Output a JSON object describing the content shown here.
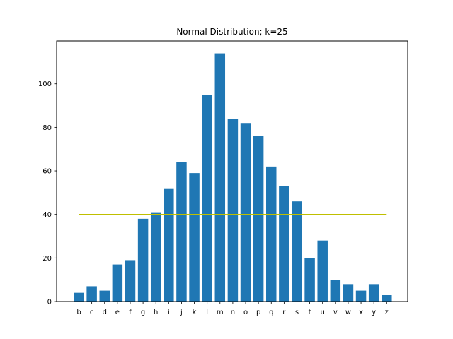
{
  "chart_data": {
    "type": "bar",
    "title": "Normal Distribution; k=25",
    "xlabel": "",
    "ylabel": "",
    "categories": [
      "b",
      "c",
      "d",
      "e",
      "f",
      "g",
      "h",
      "i",
      "j",
      "k",
      "l",
      "m",
      "n",
      "o",
      "p",
      "q",
      "r",
      "s",
      "t",
      "u",
      "v",
      "w",
      "x",
      "y",
      "z"
    ],
    "values": [
      4,
      7,
      5,
      17,
      19,
      38,
      41,
      52,
      64,
      59,
      95,
      114,
      84,
      82,
      76,
      62,
      53,
      46,
      20,
      28,
      10,
      8,
      5,
      8,
      3
    ],
    "ylim": [
      0,
      119.7
    ],
    "yticks": [
      0,
      20,
      40,
      60,
      80,
      100
    ],
    "reference_line": {
      "y": 40,
      "color": "#bfbf00"
    },
    "bar_color": "#1f77b4",
    "grid": false,
    "legend": "none"
  }
}
